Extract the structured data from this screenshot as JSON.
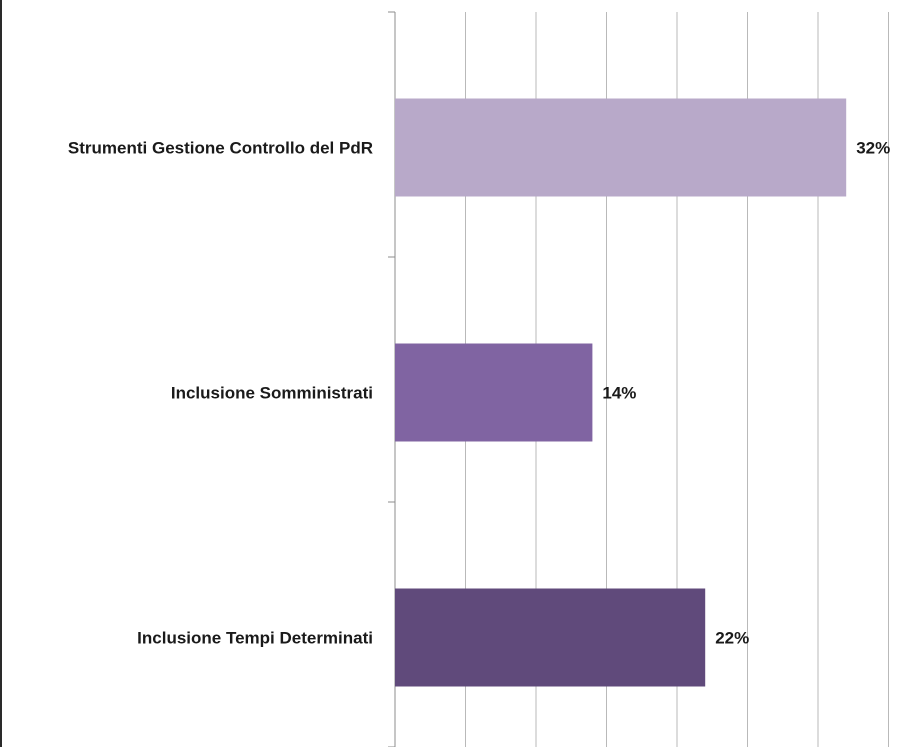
{
  "chart_data": {
    "type": "bar",
    "orientation": "horizontal",
    "categories": [
      "Strumenti Gestione Controllo del PdR",
      "Inclusione Somministrati",
      "Inclusione Tempi Determinati"
    ],
    "values": [
      32,
      14,
      22
    ],
    "value_labels": [
      "32%",
      "14%",
      "22%"
    ],
    "unit": "%",
    "xlim": [
      0,
      35
    ],
    "grid": true,
    "legend": "none",
    "colors": [
      "#b8a9c9",
      "#8064a2",
      "#604a7b"
    ]
  }
}
